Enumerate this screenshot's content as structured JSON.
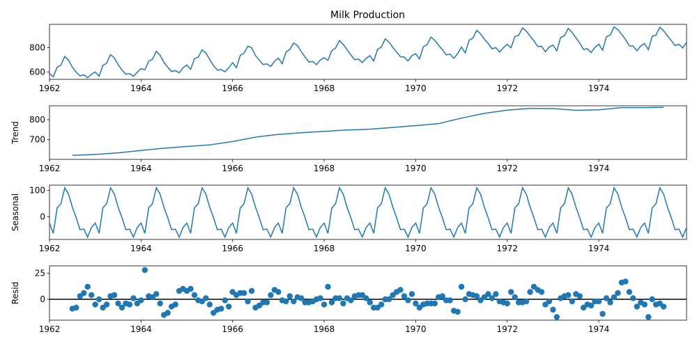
{
  "chart_data": [
    {
      "type": "line",
      "title": "Milk Production",
      "ylabel": "",
      "x_range": [
        1962.0,
        1975.917
      ],
      "ylim": [
        540,
        990
      ],
      "yticks": [
        600,
        800
      ],
      "xticks": [
        "1962",
        "1964",
        "1966",
        "1968",
        "1970",
        "1972",
        "1974"
      ],
      "x": [
        1962.0,
        1962.083,
        1962.167,
        1962.25,
        1962.333,
        1962.417,
        1962.5,
        1962.583,
        1962.667,
        1962.75,
        1962.833,
        1962.917,
        1963.0,
        1963.083,
        1963.167,
        1963.25,
        1963.333,
        1963.417,
        1963.5,
        1963.583,
        1963.667,
        1963.75,
        1963.833,
        1963.917,
        1964.0,
        1964.083,
        1964.167,
        1964.25,
        1964.333,
        1964.417,
        1964.5,
        1964.583,
        1964.667,
        1964.75,
        1964.833,
        1964.917,
        1965.0,
        1965.083,
        1965.167,
        1965.25,
        1965.333,
        1965.417,
        1965.5,
        1965.583,
        1965.667,
        1965.75,
        1965.833,
        1965.917,
        1966.0,
        1966.083,
        1966.167,
        1966.25,
        1966.333,
        1966.417,
        1966.5,
        1966.583,
        1966.667,
        1966.75,
        1966.833,
        1966.917,
        1967.0,
        1967.083,
        1967.167,
        1967.25,
        1967.333,
        1967.417,
        1967.5,
        1967.583,
        1967.667,
        1967.75,
        1967.833,
        1967.917,
        1968.0,
        1968.083,
        1968.167,
        1968.25,
        1968.333,
        1968.417,
        1968.5,
        1968.583,
        1968.667,
        1968.75,
        1968.833,
        1968.917,
        1969.0,
        1969.083,
        1969.167,
        1969.25,
        1969.333,
        1969.417,
        1969.5,
        1969.583,
        1969.667,
        1969.75,
        1969.833,
        1969.917,
        1970.0,
        1970.083,
        1970.167,
        1970.25,
        1970.333,
        1970.417,
        1970.5,
        1970.583,
        1970.667,
        1970.75,
        1970.833,
        1970.917,
        1971.0,
        1971.083,
        1971.167,
        1971.25,
        1971.333,
        1971.417,
        1971.5,
        1971.583,
        1971.667,
        1971.75,
        1971.833,
        1971.917,
        1972.0,
        1972.083,
        1972.167,
        1972.25,
        1972.333,
        1972.417,
        1972.5,
        1972.583,
        1972.667,
        1972.75,
        1972.833,
        1972.917,
        1973.0,
        1973.083,
        1973.167,
        1973.25,
        1973.333,
        1973.417,
        1973.5,
        1973.583,
        1973.667,
        1973.75,
        1973.833,
        1973.917,
        1974.0,
        1974.083,
        1974.167,
        1974.25,
        1974.333,
        1974.417,
        1974.5,
        1974.583,
        1974.667,
        1974.75,
        1974.833,
        1974.917,
        1975.0,
        1975.083,
        1975.167,
        1975.25,
        1975.333,
        1975.417,
        1975.5,
        1975.583,
        1975.667,
        1975.75,
        1975.833,
        1975.917
      ],
      "values": [
        589,
        561,
        640,
        656,
        727,
        697,
        640,
        599,
        568,
        577,
        553,
        582,
        600,
        566,
        653,
        673,
        742,
        716,
        660,
        617,
        583,
        587,
        565,
        598,
        628,
        618,
        688,
        705,
        770,
        736,
        678,
        639,
        604,
        611,
        594,
        634,
        658,
        622,
        709,
        722,
        782,
        756,
        702,
        653,
        615,
        621,
        602,
        635,
        677,
        635,
        736,
        755,
        811,
        798,
        735,
        697,
        661,
        667,
        645,
        688,
        713,
        667,
        762,
        784,
        837,
        817,
        767,
        722,
        681,
        687,
        660,
        698,
        717,
        696,
        775,
        796,
        858,
        826,
        783,
        740,
        701,
        706,
        677,
        711,
        734,
        690,
        785,
        805,
        871,
        845,
        801,
        764,
        725,
        723,
        690,
        734,
        750,
        707,
        807,
        824,
        886,
        859,
        819,
        783,
        740,
        747,
        711,
        751,
        804,
        756,
        860,
        878,
        942,
        913,
        869,
        834,
        790,
        800,
        763,
        800,
        826,
        799,
        890,
        900,
        961,
        935,
        894,
        855,
        809,
        810,
        766,
        805,
        821,
        773,
        883,
        898,
        957,
        924,
        881,
        837,
        784,
        791,
        760,
        802,
        828,
        778,
        889,
        902,
        969,
        947,
        908,
        867,
        815,
        812,
        773,
        813,
        834,
        782,
        892,
        903,
        966,
        937,
        896,
        858,
        817,
        827,
        797,
        843
      ]
    },
    {
      "type": "line",
      "ylabel": "Trend",
      "x_range": [
        1962.0,
        1975.917
      ],
      "ylim": [
        600,
        870
      ],
      "yticks": [
        700,
        800
      ],
      "xticks": [
        "1962",
        "1964",
        "1966",
        "1968",
        "1970",
        "1972",
        "1974"
      ],
      "x": [
        1962.5,
        1963.0,
        1963.5,
        1964.0,
        1964.5,
        1965.0,
        1965.5,
        1966.0,
        1966.5,
        1967.0,
        1967.5,
        1968.0,
        1968.5,
        1969.0,
        1969.5,
        1970.0,
        1970.5,
        1971.0,
        1971.5,
        1972.0,
        1972.5,
        1973.0,
        1973.5,
        1974.0,
        1974.5,
        1975.0,
        1975.417
      ],
      "values": [
        620,
        625,
        633,
        645,
        656,
        665,
        673,
        690,
        712,
        726,
        734,
        741,
        748,
        752,
        761,
        770,
        780,
        808,
        832,
        848,
        857,
        856,
        847,
        850,
        861,
        861,
        862
      ]
    },
    {
      "type": "line",
      "ylabel": "Seasonal",
      "x_range": [
        1962.0,
        1975.917
      ],
      "ylim": [
        -85,
        120
      ],
      "yticks": [
        0,
        100
      ],
      "xticks": [
        "1962",
        "1964",
        "1966",
        "1968",
        "1970",
        "1972",
        "1974"
      ],
      "x_start": 1962.0,
      "months": 168,
      "pattern": [
        -23,
        -62,
        34,
        50,
        110,
        86,
        37,
        -3,
        -48,
        -46,
        -76,
        -40
      ]
    },
    {
      "type": "scatter",
      "ylabel": "Resid",
      "x_range": [
        1962.0,
        1975.917
      ],
      "ylim": [
        -20,
        32
      ],
      "yticks": [
        0,
        25
      ],
      "xticks": [
        "1962",
        "1964",
        "1966",
        "1968",
        "1970",
        "1972",
        "1974"
      ],
      "x_start": 1962.5,
      "values": [
        -9,
        -8,
        3,
        6,
        12,
        4,
        -5,
        0,
        -8,
        -5,
        3,
        4,
        -4,
        -8,
        -4,
        -5,
        1,
        -4,
        -1,
        28,
        3,
        2,
        5,
        -4,
        -15,
        -13,
        -7,
        -5,
        8,
        10,
        8,
        10,
        4,
        -1,
        -2,
        1,
        -5,
        -13,
        -10,
        -9,
        -1,
        -7,
        7,
        4,
        6,
        6,
        -2,
        8,
        -8,
        -6,
        -3,
        -3,
        4,
        9,
        7,
        -1,
        -2,
        3,
        -2,
        2,
        1,
        -3,
        -3,
        -2,
        0,
        1,
        -5,
        12,
        -3,
        1,
        1,
        -4,
        1,
        -1,
        3,
        4,
        4,
        1,
        -3,
        -8,
        -8,
        -5,
        0,
        0,
        4,
        7,
        9,
        3,
        -1,
        5,
        -4,
        -8,
        -5,
        -4,
        -4,
        -4,
        2,
        3,
        -1,
        -1,
        -11,
        -12,
        12,
        0,
        5,
        4,
        3,
        -1,
        2,
        5,
        1,
        5,
        -2,
        -3,
        -4,
        7,
        2,
        -3,
        -3,
        -2,
        7,
        12,
        9,
        7,
        -5,
        -2,
        -10,
        -17,
        1,
        3,
        4,
        -2,
        5,
        3,
        -8,
        -5,
        -6,
        -2,
        -2,
        -14,
        1,
        -3,
        2,
        6,
        16,
        17,
        7,
        1,
        -7,
        -3,
        -5,
        -17,
        0,
        -5,
        -4,
        -7
      ]
    }
  ]
}
